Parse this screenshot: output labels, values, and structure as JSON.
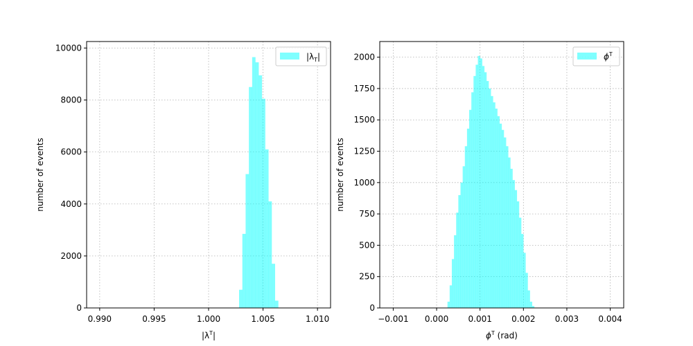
{
  "chart_data": [
    {
      "type": "bar",
      "subtype": "histogram",
      "xlabel": "|λ",
      "xlabel_sup": "T",
      "xlabel_suffix": "|",
      "ylabel": "number of events",
      "xlim": [
        0.9888,
        1.0112
      ],
      "ylim": [
        0,
        10250
      ],
      "xticks": [
        0.99,
        0.995,
        1.0,
        1.005,
        1.01
      ],
      "xtick_labels": [
        "0.990",
        "0.995",
        "1.000",
        "1.005",
        "1.010"
      ],
      "yticks": [
        0,
        2000,
        4000,
        6000,
        8000,
        10000
      ],
      "ytick_labels": [
        "0",
        "2000",
        "4000",
        "6000",
        "8000",
        "10000"
      ],
      "grid": true,
      "legend": {
        "placement": "top-right",
        "label": "|λ",
        "label_sub": "T",
        "label_suffix": "|"
      },
      "color": "#00ffff",
      "alpha": 0.5,
      "bin_edges": [
        1.0028,
        1.0031,
        1.0034,
        1.0037,
        1.004,
        1.0043,
        1.0046,
        1.0049,
        1.0052,
        1.0055,
        1.0058,
        1.0061,
        1.0064
      ],
      "counts": [
        700,
        2850,
        5150,
        8500,
        9650,
        9450,
        8950,
        8050,
        6100,
        4100,
        1700,
        280
      ]
    },
    {
      "type": "bar",
      "subtype": "histogram",
      "xlabel": "ϕ",
      "xlabel_sup": "T",
      "xlabel_suffix": " (rad)",
      "ylabel": "number of events",
      "xlim": [
        -0.00131,
        0.00431
      ],
      "ylim": [
        0,
        2125
      ],
      "xticks": [
        -0.001,
        0.0,
        0.001,
        0.002,
        0.003,
        0.004
      ],
      "xtick_labels": [
        "−0.001",
        "0.000",
        "0.001",
        "0.002",
        "0.003",
        "0.004"
      ],
      "yticks": [
        0,
        250,
        500,
        750,
        1000,
        1250,
        1500,
        1750,
        2000
      ],
      "ytick_labels": [
        "0",
        "250",
        "500",
        "750",
        "1000",
        "1250",
        "1500",
        "1750",
        "2000"
      ],
      "grid": true,
      "legend": {
        "placement": "top-right",
        "label": "ϕ",
        "label_sup": "T"
      },
      "color": "#00ffff",
      "alpha": 0.5,
      "bin_edges": [
        0.00025,
        0.0003,
        0.00035,
        0.0004,
        0.00045,
        0.0005,
        0.00055,
        0.0006,
        0.00065,
        0.0007,
        0.00075,
        0.0008,
        0.00085,
        0.0009,
        0.00095,
        0.001,
        0.00105,
        0.0011,
        0.00115,
        0.0012,
        0.00125,
        0.0013,
        0.00135,
        0.0014,
        0.00145,
        0.0015,
        0.00155,
        0.0016,
        0.00165,
        0.0017,
        0.00175,
        0.0018,
        0.00185,
        0.0019,
        0.00195,
        0.002,
        0.00205,
        0.0021,
        0.00215,
        0.0022,
        0.00225
      ],
      "counts": [
        50,
        180,
        390,
        580,
        760,
        900,
        1000,
        1130,
        1290,
        1430,
        1580,
        1720,
        1850,
        1940,
        2010,
        1990,
        1930,
        1880,
        1810,
        1750,
        1690,
        1640,
        1590,
        1530,
        1470,
        1420,
        1360,
        1290,
        1200,
        1110,
        1020,
        940,
        850,
        720,
        590,
        440,
        280,
        140,
        50,
        15
      ]
    }
  ]
}
